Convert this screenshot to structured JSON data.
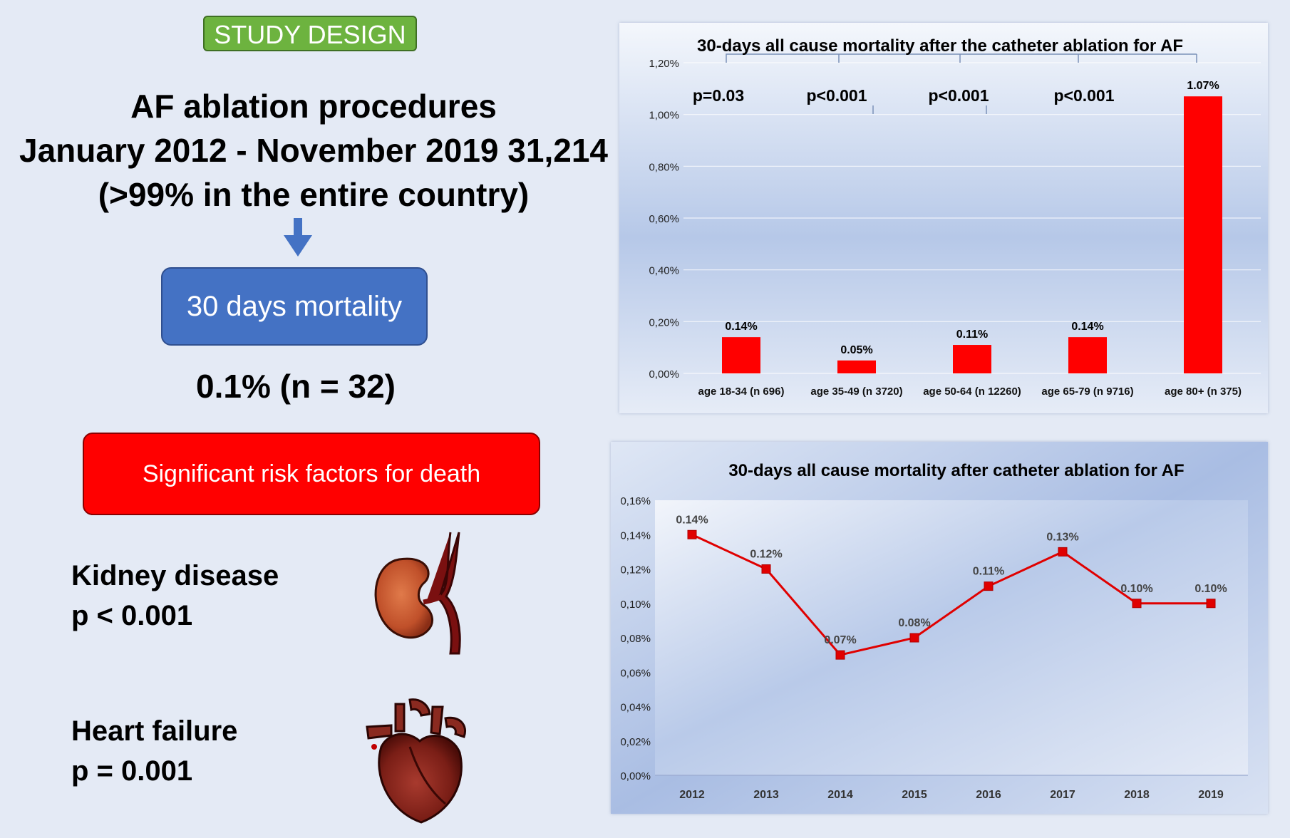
{
  "left": {
    "badge": "STUDY DESIGN",
    "title_lines": [
      "AF ablation procedures",
      "January 2012 - November 2019  31,214",
      "(>99% in the entire country)"
    ],
    "mortality_box": "30 days mortality",
    "mortality_value": "0.1% (n = 32)",
    "risk_box": "Significant risk factors for death",
    "risk_factors": [
      {
        "name": "Kidney disease",
        "p": "p < 0.001",
        "icon": "kidney-icon"
      },
      {
        "name": "Heart failure",
        "p": "p = 0.001",
        "icon": "heart-icon"
      }
    ],
    "colors": {
      "badge": "#6db33f",
      "box_blue": "#4472c4",
      "box_red": "#ff0000",
      "arrow": "#4472c4"
    }
  },
  "chart_data": [
    {
      "type": "bar",
      "title": "30-days all cause mortality after the catheter ablation for AF",
      "categories": [
        "age 18-34 (n 696)",
        "age 35-49 (n 3720)",
        "age 50-64 (n 12260)",
        "age 65-79 (n 9716)",
        "age 80+ (n 375)"
      ],
      "values": [
        0.14,
        0.05,
        0.11,
        0.14,
        1.07
      ],
      "data_labels": [
        "0.14%",
        "0.05%",
        "0.11%",
        "0.14%",
        "1.07%"
      ],
      "y_ticks": [
        "0,00%",
        "0,20%",
        "0,40%",
        "0,60%",
        "0,80%",
        "1,00%",
        "1,20%"
      ],
      "ylim": [
        0,
        1.2
      ],
      "p_values": [
        "p=0.03",
        "p<0.001",
        "p<0.001",
        "p<0.001"
      ],
      "grid": true,
      "bar_color": "#ff0000"
    },
    {
      "type": "line",
      "title": "30-days all cause mortality after catheter ablation for AF",
      "x": [
        "2012",
        "2013",
        "2014",
        "2015",
        "2016",
        "2017",
        "2018",
        "2019"
      ],
      "values": [
        0.14,
        0.12,
        0.07,
        0.08,
        0.11,
        0.13,
        0.1,
        0.1
      ],
      "data_labels": [
        "0.14%",
        "0.12%",
        "0.07%",
        "0.08%",
        "0.11%",
        "0.13%",
        "0.10%",
        "0.10%"
      ],
      "y_ticks": [
        "0,00%",
        "0,02%",
        "0,04%",
        "0,06%",
        "0,08%",
        "0,10%",
        "0,12%",
        "0,14%",
        "0,16%"
      ],
      "ylim": [
        0,
        0.16
      ],
      "grid": false,
      "line_color": "#e00000"
    }
  ]
}
